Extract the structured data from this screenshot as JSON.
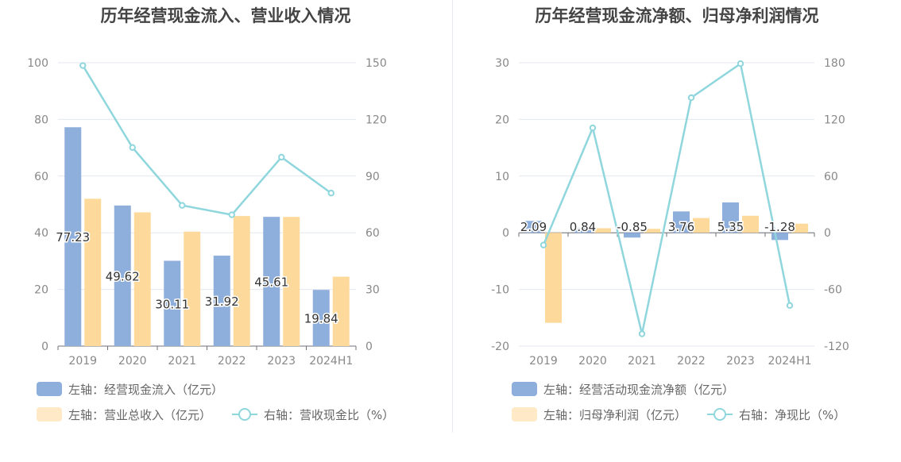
{
  "chart_data": [
    {
      "type": "bar",
      "title": "历年经营现金流入、营业收入情况",
      "categories": [
        "2019",
        "2020",
        "2021",
        "2022",
        "2023",
        "2024H1"
      ],
      "y_left_ticks": [
        "100",
        "80",
        "60",
        "40",
        "20",
        "0"
      ],
      "y_right_ticks": [
        "150",
        "120",
        "90",
        "60",
        "30",
        "0"
      ],
      "ylim_left": [
        0,
        100
      ],
      "ylim_right": [
        0,
        150
      ],
      "series": [
        {
          "name": "左轴：经营现金流入（亿元）",
          "axis": "left",
          "kind": "bar",
          "color": "#8eaedc",
          "values": [
            77.23,
            49.62,
            30.11,
            31.92,
            45.61,
            19.84
          ],
          "labels": [
            "77.23",
            "49.62",
            "30.11",
            "31.92",
            "45.61",
            "19.84"
          ]
        },
        {
          "name": "左轴：营业总收入（亿元）",
          "axis": "left",
          "kind": "bar",
          "color": "#fdda9c",
          "values": [
            52.0,
            47.2,
            40.4,
            45.9,
            45.6,
            24.5
          ]
        },
        {
          "name": "右轴：营收现金比（%）",
          "axis": "right",
          "kind": "line",
          "color": "#8fd6dd",
          "values": [
            148.5,
            105.1,
            74.5,
            69.5,
            100.0,
            81.0
          ]
        }
      ],
      "grid": true
    },
    {
      "type": "bar",
      "title": "历年经营现金流净额、归母净利润情况",
      "categories": [
        "2019",
        "2020",
        "2021",
        "2022",
        "2023",
        "2024H1"
      ],
      "y_left_ticks": [
        "30",
        "20",
        "10",
        "0",
        "-10",
        "-20"
      ],
      "y_right_ticks": [
        "180",
        "120",
        "60",
        "0",
        "-60",
        "-120"
      ],
      "ylim_left": [
        -20,
        30
      ],
      "ylim_right": [
        -120,
        180
      ],
      "series": [
        {
          "name": "左轴：经营活动现金流净额（亿元）",
          "axis": "left",
          "kind": "bar",
          "color": "#8eaedc",
          "values": [
            2.09,
            0.84,
            -0.85,
            3.76,
            5.35,
            -1.28
          ],
          "labels": [
            "2.09",
            "0.84",
            "-0.85",
            "3.76",
            "5.35",
            "-1.28"
          ]
        },
        {
          "name": "左轴：归母净利润（亿元）",
          "axis": "left",
          "kind": "bar",
          "color": "#fdda9c",
          "values": [
            -15.9,
            0.8,
            0.7,
            2.6,
            3.0,
            1.6
          ]
        },
        {
          "name": "右轴：净现比（%）",
          "axis": "right",
          "kind": "line",
          "color": "#8fd6dd",
          "values": [
            -13,
            111,
            -107,
            143,
            179,
            -77
          ]
        }
      ],
      "grid": true
    }
  ]
}
